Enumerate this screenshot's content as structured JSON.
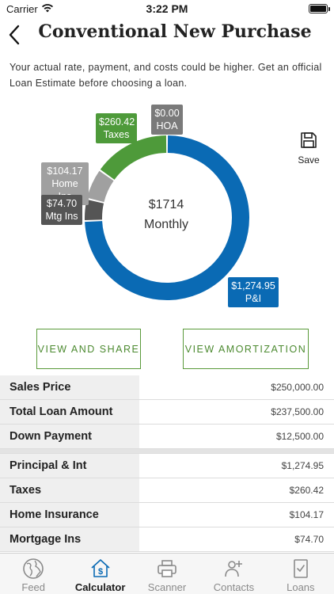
{
  "status_bar": {
    "carrier": "Carrier",
    "time": "3:22 PM"
  },
  "header": {
    "title": "Conventional New Purchase"
  },
  "disclaimer": "Your actual rate, payment, and costs could be higher. Get an official Loan Estimate before choosing a loan.",
  "chart": {
    "total": "$1714",
    "period": "Monthly",
    "segments": [
      {
        "name": "P&I",
        "value": 1274.95,
        "label": "$1,274.95",
        "color": "#0a6ab4"
      },
      {
        "name": "Mtg Ins",
        "value": 74.7,
        "label": "$74.70",
        "color": "#555555"
      },
      {
        "name": "Home Ins",
        "value": 104.17,
        "label": "$104.17",
        "color": "#a0a0a0"
      },
      {
        "name": "Taxes",
        "value": 260.42,
        "label": "$260.42",
        "color": "#4e9a3a"
      },
      {
        "name": "HOA",
        "value": 0.0,
        "label": "$0.00",
        "color": "#777777"
      }
    ]
  },
  "save": {
    "label": "Save"
  },
  "buttons": {
    "share": "VIEW AND SHARE",
    "amortization": "VIEW AMORTIZATION"
  },
  "table": {
    "group1": [
      {
        "label": "Sales Price",
        "value": "$250,000.00"
      },
      {
        "label": "Total Loan Amount",
        "value": "$237,500.00"
      },
      {
        "label": "Down Payment",
        "value": "$12,500.00"
      }
    ],
    "group2": [
      {
        "label": "Principal & Int",
        "value": "$1,274.95"
      },
      {
        "label": "Taxes",
        "value": "$260.42"
      },
      {
        "label": "Home Insurance",
        "value": "$104.17"
      },
      {
        "label": "Mortgage Ins",
        "value": "$74.70"
      }
    ]
  },
  "tabs": [
    {
      "label": "Feed",
      "icon": "globe-icon",
      "active": false
    },
    {
      "label": "Calculator",
      "icon": "house-dollar-icon",
      "active": true
    },
    {
      "label": "Scanner",
      "icon": "printer-icon",
      "active": false
    },
    {
      "label": "Contacts",
      "icon": "contacts-icon",
      "active": false
    },
    {
      "label": "Loans",
      "icon": "document-check-icon",
      "active": false
    }
  ]
}
